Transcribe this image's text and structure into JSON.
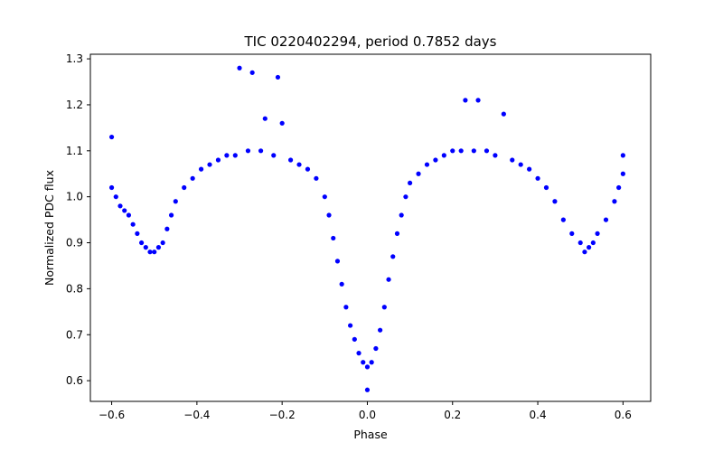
{
  "chart_data": {
    "type": "scatter",
    "title": "TIC 0220402294, period 0.7852 days",
    "xlabel": "Phase",
    "ylabel": "Normalized PDC flux",
    "xlim": [
      -0.65,
      0.665
    ],
    "ylim": [
      0.555,
      1.31
    ],
    "xticks": [
      -0.6,
      -0.4,
      -0.2,
      0.0,
      0.2,
      0.4,
      0.6
    ],
    "xtick_labels": [
      "−0.6",
      "−0.4",
      "−0.2",
      "0.0",
      "0.2",
      "0.4",
      "0.6"
    ],
    "yticks": [
      0.6,
      0.7,
      0.8,
      0.9,
      1.0,
      1.1,
      1.2,
      1.3
    ],
    "ytick_labels": [
      "0.6",
      "0.7",
      "0.8",
      "0.9",
      "1.0",
      "1.1",
      "1.2",
      "1.3"
    ],
    "grid": false,
    "marker_color": "#0000ff",
    "series": [
      {
        "values": [
          [
            -0.6,
            1.02
          ],
          [
            -0.6,
            1.13
          ],
          [
            -0.59,
            1.0
          ],
          [
            -0.58,
            0.98
          ],
          [
            -0.57,
            0.97
          ],
          [
            -0.56,
            0.96
          ],
          [
            -0.55,
            0.94
          ],
          [
            -0.54,
            0.92
          ],
          [
            -0.53,
            0.9
          ],
          [
            -0.52,
            0.89
          ],
          [
            -0.51,
            0.88
          ],
          [
            -0.5,
            0.88
          ],
          [
            -0.49,
            0.89
          ],
          [
            -0.48,
            0.9
          ],
          [
            -0.47,
            0.93
          ],
          [
            -0.46,
            0.96
          ],
          [
            -0.45,
            0.99
          ],
          [
            -0.43,
            1.02
          ],
          [
            -0.41,
            1.04
          ],
          [
            -0.39,
            1.06
          ],
          [
            -0.37,
            1.07
          ],
          [
            -0.35,
            1.08
          ],
          [
            -0.33,
            1.09
          ],
          [
            -0.31,
            1.09
          ],
          [
            -0.3,
            1.28
          ],
          [
            -0.28,
            1.1
          ],
          [
            -0.27,
            1.27
          ],
          [
            -0.25,
            1.1
          ],
          [
            -0.24,
            1.17
          ],
          [
            -0.22,
            1.09
          ],
          [
            -0.21,
            1.26
          ],
          [
            -0.2,
            1.16
          ],
          [
            -0.18,
            1.08
          ],
          [
            -0.16,
            1.07
          ],
          [
            -0.14,
            1.06
          ],
          [
            -0.12,
            1.04
          ],
          [
            -0.1,
            1.0
          ],
          [
            -0.09,
            0.96
          ],
          [
            -0.08,
            0.91
          ],
          [
            -0.07,
            0.86
          ],
          [
            -0.06,
            0.81
          ],
          [
            -0.05,
            0.76
          ],
          [
            -0.04,
            0.72
          ],
          [
            -0.03,
            0.69
          ],
          [
            -0.02,
            0.66
          ],
          [
            -0.01,
            0.64
          ],
          [
            0.0,
            0.63
          ],
          [
            0.0,
            0.58
          ],
          [
            0.01,
            0.64
          ],
          [
            0.02,
            0.67
          ],
          [
            0.03,
            0.71
          ],
          [
            0.04,
            0.76
          ],
          [
            0.05,
            0.82
          ],
          [
            0.06,
            0.87
          ],
          [
            0.07,
            0.92
          ],
          [
            0.08,
            0.96
          ],
          [
            0.09,
            1.0
          ],
          [
            0.1,
            1.03
          ],
          [
            0.12,
            1.05
          ],
          [
            0.14,
            1.07
          ],
          [
            0.16,
            1.08
          ],
          [
            0.18,
            1.09
          ],
          [
            0.2,
            1.1
          ],
          [
            0.22,
            1.1
          ],
          [
            0.23,
            1.21
          ],
          [
            0.25,
            1.1
          ],
          [
            0.26,
            1.21
          ],
          [
            0.28,
            1.1
          ],
          [
            0.3,
            1.09
          ],
          [
            0.32,
            1.18
          ],
          [
            0.34,
            1.08
          ],
          [
            0.36,
            1.07
          ],
          [
            0.38,
            1.06
          ],
          [
            0.4,
            1.04
          ],
          [
            0.42,
            1.02
          ],
          [
            0.44,
            0.99
          ],
          [
            0.46,
            0.95
          ],
          [
            0.48,
            0.92
          ],
          [
            0.5,
            0.9
          ],
          [
            0.51,
            0.88
          ],
          [
            0.52,
            0.89
          ],
          [
            0.53,
            0.9
          ],
          [
            0.54,
            0.92
          ],
          [
            0.56,
            0.95
          ],
          [
            0.58,
            0.99
          ],
          [
            0.59,
            1.02
          ],
          [
            0.6,
            1.05
          ],
          [
            0.6,
            1.09
          ]
        ]
      }
    ]
  }
}
